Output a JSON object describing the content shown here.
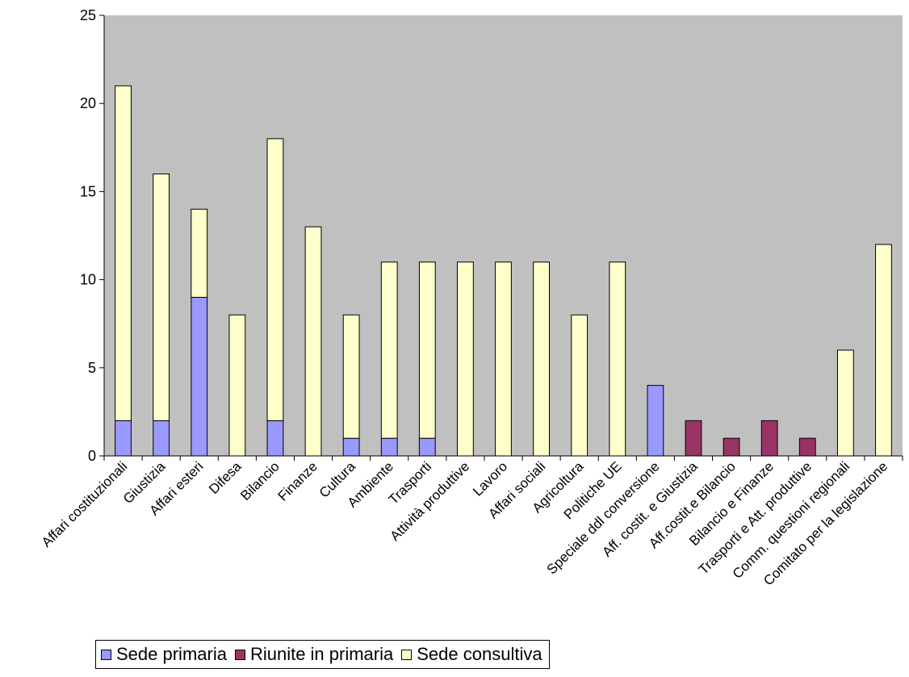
{
  "colors": {
    "plot_background": "#C0C0C0",
    "primaria": "#9999FF",
    "riunite": "#993366",
    "consultiva": "#FFFFCC",
    "bar_outline": "#000000"
  },
  "chart_data": {
    "type": "bar",
    "stacked": true,
    "title": "",
    "xlabel": "",
    "ylabel": "",
    "ylim": [
      0,
      25
    ],
    "yticks": [
      0,
      5,
      10,
      15,
      20,
      25
    ],
    "grid": false,
    "legend_position": "bottom-left",
    "categories": [
      "Affari costituzionali",
      "Giustizia",
      "Affari esteri",
      "Difesa",
      "Bilancio",
      "Finanze",
      "Cultura",
      "Ambiente",
      "Trasporti",
      "Attività produttive",
      "Lavoro",
      "Affari sociali",
      "Agricoltura",
      "Politiche UE",
      "Speciale ddl conversione",
      "Aff. costit. e Giustizia",
      "Aff.costit.e Bilancio",
      "Bilancio e Finanze",
      "Trasporti e Att. produttive",
      "Comm. questioni regionali",
      "Comitato per la legislazione"
    ],
    "series": [
      {
        "name": "Sede primaria",
        "color": "#9999FF",
        "values": [
          2,
          2,
          9,
          0,
          2,
          0,
          1,
          1,
          1,
          0,
          0,
          0,
          0,
          0,
          4,
          0,
          0,
          0,
          0,
          0,
          0
        ]
      },
      {
        "name": "Riunite in primaria",
        "color": "#993366",
        "values": [
          0,
          0,
          0,
          0,
          0,
          0,
          0,
          0,
          0,
          0,
          0,
          0,
          0,
          0,
          0,
          2,
          1,
          2,
          1,
          0,
          0
        ]
      },
      {
        "name": "Sede consultiva",
        "color": "#FFFFCC",
        "values": [
          19,
          14,
          5,
          8,
          16,
          13,
          7,
          10,
          10,
          11,
          11,
          11,
          8,
          11,
          0,
          0,
          0,
          0,
          0,
          6,
          12
        ]
      }
    ]
  }
}
